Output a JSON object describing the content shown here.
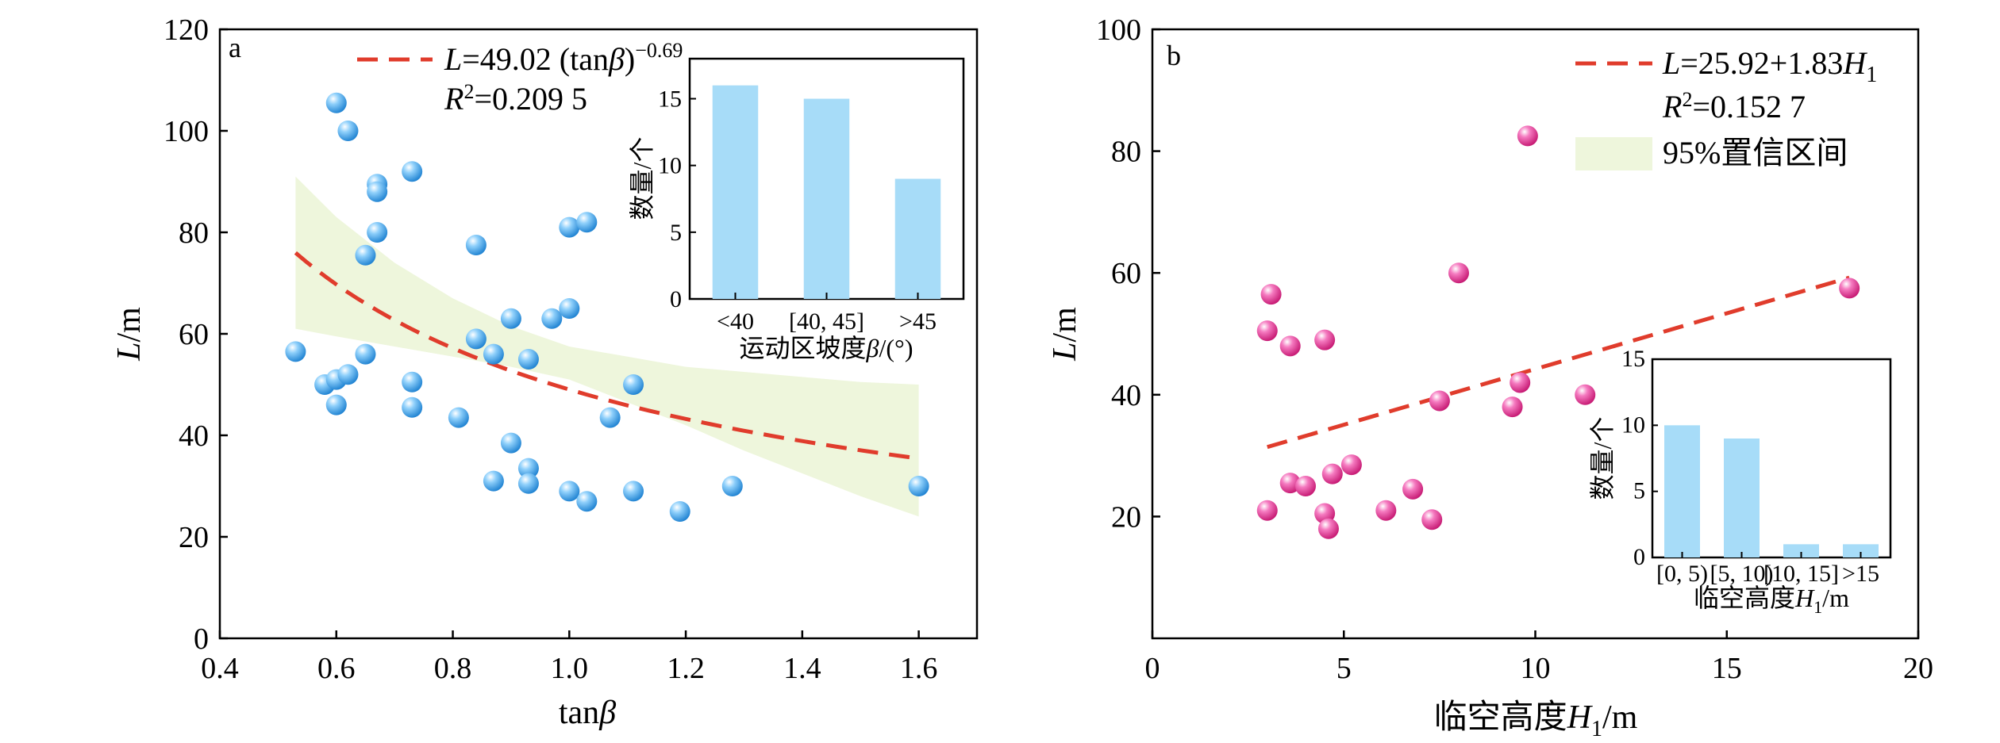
{
  "chart_data": [
    {
      "type": "scatter",
      "panel_label": "a",
      "xlabel": "tanβ",
      "ylabel": "L/m",
      "xlim": [
        0.4,
        1.7
      ],
      "ylim": [
        0,
        120
      ],
      "x_ticks": [
        "0.4",
        "0.6",
        "0.8",
        "1.0",
        "1.2",
        "1.4",
        "1.6"
      ],
      "y_ticks": [
        "0",
        "20",
        "40",
        "60",
        "80",
        "100",
        "120"
      ],
      "point_color": "#3aa6ef",
      "fit_color": "#e03c2c",
      "band_color": "#eef6dc",
      "fit": {
        "expr": "L=49.02 (tanβ)^-0.69",
        "r2": "R²=0.209 5",
        "a": 49.02,
        "b": -0.69,
        "x_range": [
          0.53,
          1.6
        ]
      },
      "band": [
        {
          "x": 0.53,
          "lo": 61.0,
          "hi": 91.0
        },
        {
          "x": 0.6,
          "lo": 59.5,
          "hi": 83.0
        },
        {
          "x": 0.7,
          "lo": 57.5,
          "hi": 74.0
        },
        {
          "x": 0.8,
          "lo": 55.5,
          "hi": 67.0
        },
        {
          "x": 0.9,
          "lo": 53.5,
          "hi": 61.5
        },
        {
          "x": 1.0,
          "lo": 51.0,
          "hi": 57.5
        },
        {
          "x": 1.1,
          "lo": 46.5,
          "hi": 55.5
        },
        {
          "x": 1.2,
          "lo": 42.0,
          "hi": 53.5
        },
        {
          "x": 1.3,
          "lo": 37.0,
          "hi": 52.5
        },
        {
          "x": 1.4,
          "lo": 32.5,
          "hi": 51.5
        },
        {
          "x": 1.5,
          "lo": 28.0,
          "hi": 50.5
        },
        {
          "x": 1.6,
          "lo": 24.0,
          "hi": 50.0
        }
      ],
      "points": [
        {
          "x": 0.53,
          "y": 56.5
        },
        {
          "x": 0.58,
          "y": 50.0
        },
        {
          "x": 0.6,
          "y": 51.0
        },
        {
          "x": 0.6,
          "y": 105.5
        },
        {
          "x": 0.6,
          "y": 46.0
        },
        {
          "x": 0.62,
          "y": 100.0
        },
        {
          "x": 0.62,
          "y": 52.0
        },
        {
          "x": 0.65,
          "y": 75.5
        },
        {
          "x": 0.65,
          "y": 56.0
        },
        {
          "x": 0.67,
          "y": 89.5
        },
        {
          "x": 0.67,
          "y": 88.0
        },
        {
          "x": 0.67,
          "y": 80.0
        },
        {
          "x": 0.73,
          "y": 92.0
        },
        {
          "x": 0.73,
          "y": 50.5
        },
        {
          "x": 0.73,
          "y": 45.5
        },
        {
          "x": 0.81,
          "y": 43.5
        },
        {
          "x": 0.84,
          "y": 77.5
        },
        {
          "x": 0.84,
          "y": 59.0
        },
        {
          "x": 0.87,
          "y": 56.0
        },
        {
          "x": 0.87,
          "y": 31.0
        },
        {
          "x": 0.9,
          "y": 63.0
        },
        {
          "x": 0.9,
          "y": 38.5
        },
        {
          "x": 0.93,
          "y": 55.0
        },
        {
          "x": 0.93,
          "y": 33.5
        },
        {
          "x": 0.93,
          "y": 30.5
        },
        {
          "x": 0.97,
          "y": 63.0
        },
        {
          "x": 1.0,
          "y": 81.0
        },
        {
          "x": 1.0,
          "y": 65.0
        },
        {
          "x": 1.0,
          "y": 29.0
        },
        {
          "x": 1.03,
          "y": 82.0
        },
        {
          "x": 1.03,
          "y": 27.0
        },
        {
          "x": 1.07,
          "y": 43.5
        },
        {
          "x": 1.11,
          "y": 50.0
        },
        {
          "x": 1.11,
          "y": 29.0
        },
        {
          "x": 1.19,
          "y": 25.0
        },
        {
          "x": 1.28,
          "y": 30.0
        },
        {
          "x": 1.6,
          "y": 30.0
        }
      ],
      "inset": {
        "type": "bar",
        "categories": [
          "<40",
          "[40, 45]",
          ">45"
        ],
        "values": [
          16,
          15,
          9
        ],
        "ylabel": "数量/个",
        "xlabel": "运动区坡度β/(°)",
        "ylim": [
          0,
          18
        ],
        "y_ticks": [
          "0",
          "5",
          "10",
          "15"
        ],
        "bar_color": "#a7dcf8"
      }
    },
    {
      "type": "scatter",
      "panel_label": "b",
      "xlabel": "临空高度H1/m",
      "ylabel": "L/m",
      "xlim": [
        0,
        20
      ],
      "ylim": [
        0,
        100
      ],
      "x_ticks": [
        "0",
        "5",
        "10",
        "15",
        "20"
      ],
      "y_ticks": [
        "20",
        "40",
        "60",
        "80",
        "100"
      ],
      "point_color": "#e9309a",
      "fit_color": "#e03c2c",
      "band_color": "#eef6dc",
      "fit": {
        "expr": "L=25.92+1.83H1",
        "r2": "R²=0.152 7",
        "a": 25.92,
        "b": 1.83,
        "x_range": [
          3.0,
          18.2
        ]
      },
      "band_legend": "95%置信区间",
      "points": [
        {
          "x": 3.0,
          "y": 21.0
        },
        {
          "x": 3.0,
          "y": 50.5
        },
        {
          "x": 3.1,
          "y": 56.5
        },
        {
          "x": 3.6,
          "y": 48.0
        },
        {
          "x": 3.6,
          "y": 25.5
        },
        {
          "x": 4.0,
          "y": 25.0
        },
        {
          "x": 4.5,
          "y": 49.0
        },
        {
          "x": 4.5,
          "y": 20.5
        },
        {
          "x": 4.6,
          "y": 18.0
        },
        {
          "x": 4.7,
          "y": 27.0
        },
        {
          "x": 5.2,
          "y": 28.5
        },
        {
          "x": 6.1,
          "y": 21.0
        },
        {
          "x": 6.8,
          "y": 24.5
        },
        {
          "x": 7.3,
          "y": 19.5
        },
        {
          "x": 7.5,
          "y": 39.0
        },
        {
          "x": 8.0,
          "y": 60.0
        },
        {
          "x": 9.4,
          "y": 38.0
        },
        {
          "x": 9.6,
          "y": 42.0
        },
        {
          "x": 9.8,
          "y": 82.5
        },
        {
          "x": 11.3,
          "y": 40.0
        },
        {
          "x": 18.2,
          "y": 57.5
        }
      ],
      "inset": {
        "type": "bar",
        "categories": [
          "[0, 5)",
          "[5, 10)",
          "[10, 15]",
          ">15"
        ],
        "values": [
          10,
          9,
          1,
          1
        ],
        "ylabel": "数量/个",
        "xlabel": "临空高度H1/m",
        "ylim": [
          0,
          15
        ],
        "y_ticks": [
          "0",
          "5",
          "10",
          "15"
        ],
        "bar_color": "#a7dcf8"
      }
    }
  ]
}
